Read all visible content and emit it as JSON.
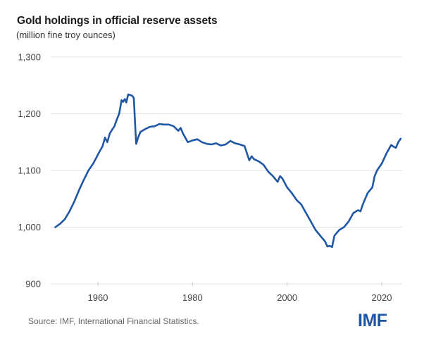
{
  "chart_data": {
    "type": "line",
    "title": "Gold holdings in official reserve assets",
    "subtitle": "(million fine troy ounces)",
    "xlabel": "",
    "ylabel": "",
    "xlim": [
      1951,
      2024
    ],
    "ylim": [
      900,
      1300
    ],
    "x_ticks": [
      1960,
      1980,
      2000,
      2020
    ],
    "x_tick_labels": [
      "1960",
      "1980",
      "2000",
      "2020"
    ],
    "y_ticks": [
      900,
      1000,
      1100,
      1200,
      1300
    ],
    "y_tick_labels": [
      "900",
      "1,000",
      "1,100",
      "1,200",
      "1,300"
    ],
    "grid": "horizontal",
    "legend": "none",
    "line_color": "#1f57a5",
    "series": [
      {
        "name": "Gold holdings",
        "x": [
          1951,
          1952,
          1953,
          1954,
          1955,
          1956,
          1957,
          1958,
          1959,
          1960,
          1961,
          1961.5,
          1962,
          1962.5,
          1963,
          1963.5,
          1964,
          1964.5,
          1965,
          1965.3,
          1965.7,
          1966,
          1966.4,
          1966.8,
          1967.2,
          1967.6,
          1967.9,
          1968.1,
          1968.5,
          1969,
          1970,
          1971,
          1972,
          1973,
          1974,
          1975,
          1976,
          1977,
          1977.5,
          1978,
          1979,
          1980,
          1981,
          1982,
          1983,
          1984,
          1985,
          1986,
          1987,
          1988,
          1989,
          1990,
          1991,
          1992,
          1992.5,
          1993,
          1994,
          1995,
          1996,
          1997,
          1998,
          1998.5,
          1999,
          2000,
          2001,
          2002,
          2003,
          2004,
          2005,
          2006,
          2007,
          2008,
          2008.5,
          2009,
          2009.5,
          2010,
          2011,
          2012,
          2013,
          2014,
          2015,
          2015.5,
          2016,
          2017,
          2018,
          2018.5,
          2019,
          2020,
          2021,
          2022,
          2022.5,
          2023,
          2023.5,
          2024
        ],
        "values": [
          1000,
          1006,
          1014,
          1028,
          1045,
          1065,
          1083,
          1100,
          1112,
          1128,
          1143,
          1158,
          1150,
          1165,
          1172,
          1178,
          1190,
          1200,
          1224,
          1221,
          1226,
          1220,
          1234,
          1233,
          1232,
          1228,
          1175,
          1147,
          1158,
          1168,
          1173,
          1177,
          1178,
          1182,
          1181,
          1181,
          1178,
          1170,
          1175,
          1165,
          1150,
          1153,
          1155,
          1150,
          1147,
          1146,
          1148,
          1144,
          1146,
          1152,
          1148,
          1146,
          1143,
          1118,
          1125,
          1120,
          1116,
          1110,
          1098,
          1090,
          1080,
          1090,
          1086,
          1070,
          1060,
          1048,
          1040,
          1025,
          1010,
          995,
          985,
          975,
          966,
          967,
          965,
          985,
          995,
          1000,
          1010,
          1025,
          1030,
          1028,
          1040,
          1060,
          1070,
          1090,
          1100,
          1112,
          1130,
          1145,
          1142,
          1140,
          1150,
          1156
        ]
      }
    ]
  },
  "footer": {
    "source": "Source: IMF, International Financial Statistics.",
    "logo": "IMF"
  }
}
